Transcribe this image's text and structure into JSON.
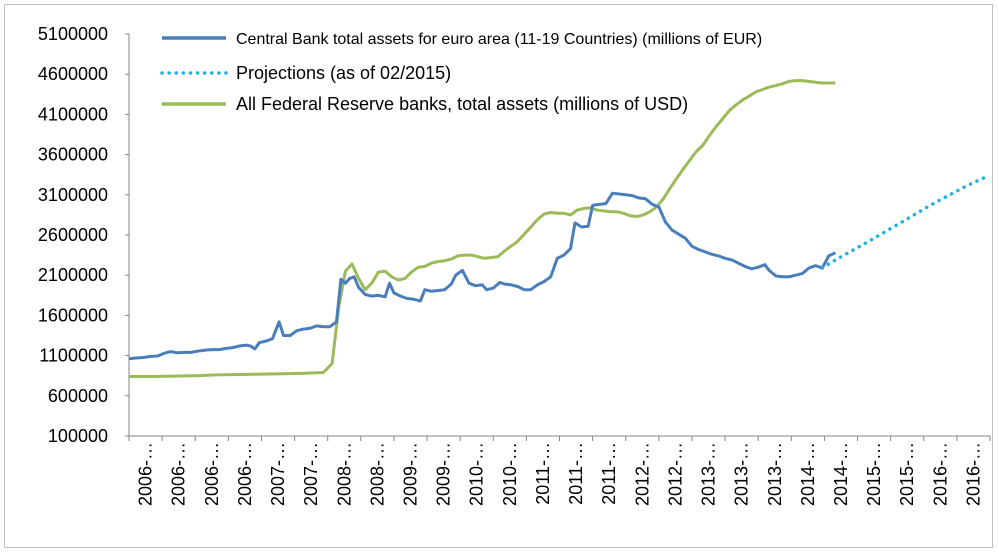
{
  "chart_data": {
    "type": "line",
    "title": "",
    "xlabel": "",
    "ylabel": "",
    "ylim": [
      100000,
      5100000
    ],
    "y_ticks": [
      "5100000",
      "4600000",
      "4100000",
      "3600000",
      "3100000",
      "2600000",
      "2100000",
      "1600000",
      "1100000",
      "600000",
      "100000"
    ],
    "x_tick_labels": [
      "2006-…",
      "2006-…",
      "2006-…",
      "2006-…",
      "2007-…",
      "2007-…",
      "2008-…",
      "2008-…",
      "2009-…",
      "2009-…",
      "2010-…",
      "2010-…",
      "2011-…",
      "2011-…",
      "2011-…",
      "2012-…",
      "2012-…",
      "2013-…",
      "2013-…",
      "2013-…",
      "2014-…",
      "2014-…",
      "2015-…",
      "2015-…",
      "2016-…",
      "2016-…"
    ],
    "grid": false,
    "legend_position": "top",
    "colors": {
      "ecb": "#4a7ebb",
      "projection": "#1fb1e4",
      "fed": "#9bbb59"
    },
    "series": [
      {
        "name": "Central Bank total assets for euro area (11-19 Countries) (millions of EUR)",
        "key": "ecb",
        "style": "solid",
        "points": [
          [
            0,
            1060000
          ],
          [
            0.3,
            1070000
          ],
          [
            0.6,
            1075000
          ],
          [
            1.0,
            1090000
          ],
          [
            1.3,
            1095000
          ],
          [
            1.6,
            1130000
          ],
          [
            1.9,
            1150000
          ],
          [
            2.2,
            1135000
          ],
          [
            2.5,
            1140000
          ],
          [
            2.8,
            1140000
          ],
          [
            3.1,
            1155000
          ],
          [
            3.5,
            1170000
          ],
          [
            3.8,
            1175000
          ],
          [
            4.1,
            1175000
          ],
          [
            4.4,
            1190000
          ],
          [
            4.7,
            1200000
          ],
          [
            5.0,
            1220000
          ],
          [
            5.3,
            1230000
          ],
          [
            5.5,
            1220000
          ],
          [
            5.7,
            1185000
          ],
          [
            5.9,
            1260000
          ],
          [
            6.2,
            1280000
          ],
          [
            6.5,
            1310000
          ],
          [
            6.8,
            1520000
          ],
          [
            7.0,
            1350000
          ],
          [
            7.3,
            1350000
          ],
          [
            7.6,
            1410000
          ],
          [
            7.9,
            1430000
          ],
          [
            8.2,
            1440000
          ],
          [
            8.5,
            1470000
          ],
          [
            8.8,
            1460000
          ],
          [
            9.1,
            1460000
          ],
          [
            9.4,
            1520000
          ],
          [
            9.6,
            2050000
          ],
          [
            9.8,
            2000000
          ],
          [
            10.0,
            2060000
          ],
          [
            10.2,
            2080000
          ],
          [
            10.4,
            1950000
          ],
          [
            10.7,
            1860000
          ],
          [
            11.0,
            1840000
          ],
          [
            11.3,
            1850000
          ],
          [
            11.6,
            1830000
          ],
          [
            11.8,
            2000000
          ],
          [
            12.0,
            1880000
          ],
          [
            12.3,
            1840000
          ],
          [
            12.6,
            1810000
          ],
          [
            12.9,
            1800000
          ],
          [
            13.2,
            1780000
          ],
          [
            13.4,
            1920000
          ],
          [
            13.7,
            1900000
          ],
          [
            14.0,
            1910000
          ],
          [
            14.3,
            1920000
          ],
          [
            14.6,
            1990000
          ],
          [
            14.8,
            2100000
          ],
          [
            15.1,
            2160000
          ],
          [
            15.4,
            2000000
          ],
          [
            15.7,
            1970000
          ],
          [
            16.0,
            1980000
          ],
          [
            16.2,
            1920000
          ],
          [
            16.5,
            1940000
          ],
          [
            16.8,
            2010000
          ],
          [
            17.0,
            1990000
          ],
          [
            17.3,
            1980000
          ],
          [
            17.6,
            1960000
          ],
          [
            17.9,
            1920000
          ],
          [
            18.2,
            1920000
          ],
          [
            18.5,
            1980000
          ],
          [
            18.8,
            2020000
          ],
          [
            19.1,
            2080000
          ],
          [
            19.4,
            2310000
          ],
          [
            19.7,
            2350000
          ],
          [
            20.0,
            2430000
          ],
          [
            20.2,
            2750000
          ],
          [
            20.5,
            2700000
          ],
          [
            20.8,
            2710000
          ],
          [
            21.0,
            2970000
          ],
          [
            21.3,
            2980000
          ],
          [
            21.6,
            2990000
          ],
          [
            21.9,
            3120000
          ],
          [
            22.2,
            3110000
          ],
          [
            22.5,
            3100000
          ],
          [
            22.8,
            3090000
          ],
          [
            23.1,
            3060000
          ],
          [
            23.4,
            3050000
          ],
          [
            23.7,
            2980000
          ],
          [
            24.0,
            2950000
          ],
          [
            24.3,
            2760000
          ],
          [
            24.6,
            2660000
          ],
          [
            24.9,
            2610000
          ],
          [
            25.2,
            2560000
          ],
          [
            25.5,
            2460000
          ],
          [
            25.8,
            2420000
          ],
          [
            26.1,
            2390000
          ],
          [
            26.4,
            2360000
          ],
          [
            26.7,
            2340000
          ],
          [
            27.0,
            2310000
          ],
          [
            27.3,
            2290000
          ],
          [
            27.6,
            2250000
          ],
          [
            27.9,
            2210000
          ],
          [
            28.2,
            2180000
          ],
          [
            28.5,
            2200000
          ],
          [
            28.8,
            2230000
          ],
          [
            29.0,
            2160000
          ],
          [
            29.3,
            2090000
          ],
          [
            29.6,
            2080000
          ],
          [
            29.9,
            2080000
          ],
          [
            30.2,
            2100000
          ],
          [
            30.5,
            2120000
          ],
          [
            30.8,
            2190000
          ],
          [
            31.1,
            2220000
          ],
          [
            31.4,
            2190000
          ],
          [
            31.7,
            2340000
          ],
          [
            32.0,
            2380000
          ]
        ]
      },
      {
        "name": "Projections (as of 02/2015)",
        "key": "projection",
        "style": "dotted",
        "points": [
          [
            31.4,
            2190000
          ],
          [
            32.0,
            2290000
          ],
          [
            33.5,
            2520000
          ],
          [
            35.0,
            2760000
          ],
          [
            36.5,
            3000000
          ],
          [
            38.0,
            3220000
          ],
          [
            38.8,
            3320000
          ]
        ]
      },
      {
        "name": "All Federal Reserve banks, total assets (millions of USD)",
        "key": "fed",
        "style": "solid",
        "points": [
          [
            0,
            840000
          ],
          [
            1.0,
            840000
          ],
          [
            2.0,
            845000
          ],
          [
            3.0,
            850000
          ],
          [
            4.0,
            860000
          ],
          [
            5.0,
            865000
          ],
          [
            6.0,
            870000
          ],
          [
            7.0,
            875000
          ],
          [
            8.0,
            880000
          ],
          [
            8.8,
            890000
          ],
          [
            9.2,
            1000000
          ],
          [
            9.5,
            1700000
          ],
          [
            9.8,
            2150000
          ],
          [
            10.1,
            2240000
          ],
          [
            10.4,
            2060000
          ],
          [
            10.7,
            1920000
          ],
          [
            11.0,
            2000000
          ],
          [
            11.3,
            2140000
          ],
          [
            11.6,
            2150000
          ],
          [
            11.9,
            2080000
          ],
          [
            12.2,
            2040000
          ],
          [
            12.5,
            2060000
          ],
          [
            12.8,
            2140000
          ],
          [
            13.1,
            2200000
          ],
          [
            13.4,
            2210000
          ],
          [
            13.7,
            2250000
          ],
          [
            14.0,
            2270000
          ],
          [
            14.3,
            2280000
          ],
          [
            14.6,
            2300000
          ],
          [
            14.9,
            2340000
          ],
          [
            15.2,
            2350000
          ],
          [
            15.5,
            2350000
          ],
          [
            15.8,
            2330000
          ],
          [
            16.1,
            2310000
          ],
          [
            16.4,
            2320000
          ],
          [
            16.7,
            2330000
          ],
          [
            17.0,
            2400000
          ],
          [
            17.3,
            2460000
          ],
          [
            17.6,
            2520000
          ],
          [
            17.9,
            2610000
          ],
          [
            18.2,
            2700000
          ],
          [
            18.5,
            2790000
          ],
          [
            18.8,
            2860000
          ],
          [
            19.1,
            2880000
          ],
          [
            19.4,
            2870000
          ],
          [
            19.7,
            2870000
          ],
          [
            20.0,
            2850000
          ],
          [
            20.3,
            2910000
          ],
          [
            20.6,
            2930000
          ],
          [
            20.9,
            2940000
          ],
          [
            21.2,
            2910000
          ],
          [
            21.5,
            2900000
          ],
          [
            21.8,
            2890000
          ],
          [
            22.1,
            2890000
          ],
          [
            22.4,
            2870000
          ],
          [
            22.7,
            2840000
          ],
          [
            23.0,
            2830000
          ],
          [
            23.3,
            2850000
          ],
          [
            23.6,
            2890000
          ],
          [
            23.9,
            2950000
          ],
          [
            24.2,
            3050000
          ],
          [
            24.5,
            3180000
          ],
          [
            24.8,
            3300000
          ],
          [
            25.1,
            3420000
          ],
          [
            25.4,
            3530000
          ],
          [
            25.7,
            3640000
          ],
          [
            26.0,
            3720000
          ],
          [
            26.3,
            3840000
          ],
          [
            26.6,
            3950000
          ],
          [
            26.9,
            4050000
          ],
          [
            27.2,
            4150000
          ],
          [
            27.5,
            4220000
          ],
          [
            27.8,
            4280000
          ],
          [
            28.1,
            4330000
          ],
          [
            28.4,
            4380000
          ],
          [
            28.7,
            4410000
          ],
          [
            29.0,
            4440000
          ],
          [
            29.3,
            4460000
          ],
          [
            29.6,
            4480000
          ],
          [
            29.9,
            4510000
          ],
          [
            30.2,
            4520000
          ],
          [
            30.5,
            4520000
          ],
          [
            30.8,
            4510000
          ],
          [
            31.1,
            4500000
          ],
          [
            31.4,
            4490000
          ],
          [
            31.7,
            4490000
          ],
          [
            32.0,
            4490000
          ]
        ]
      }
    ]
  }
}
